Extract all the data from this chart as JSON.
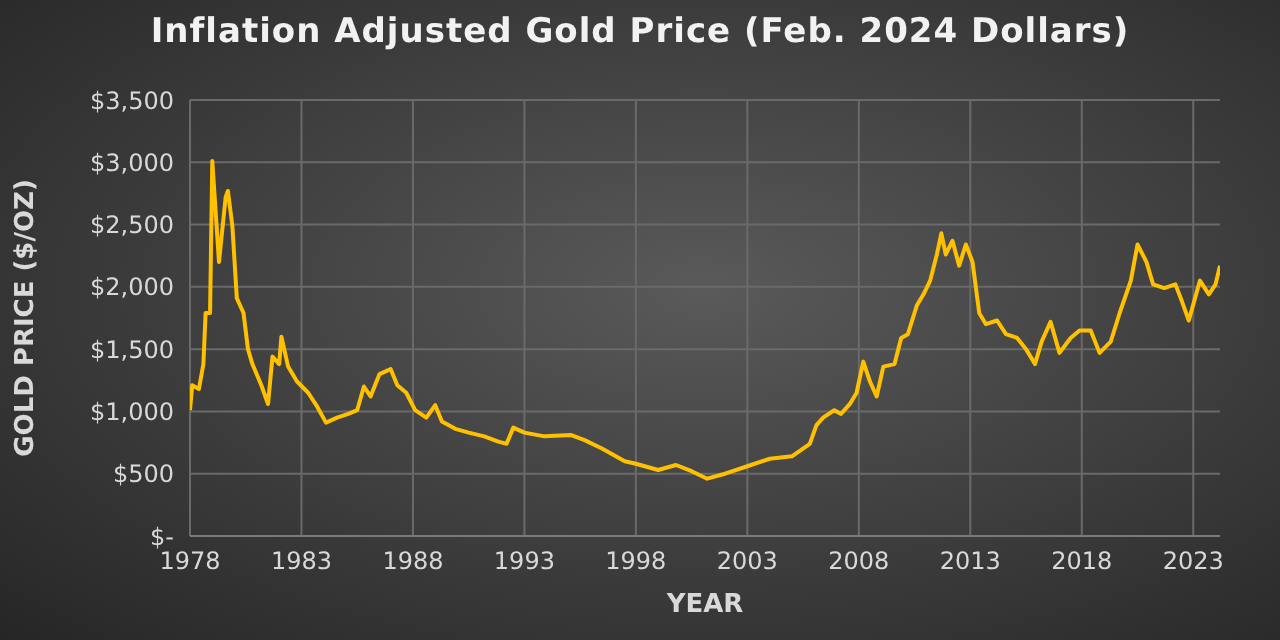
{
  "chart_data": {
    "type": "line",
    "title": "Inflation Adjusted Gold Price (Feb. 2024 Dollars)",
    "xlabel": "YEAR",
    "ylabel": "GOLD PRICE ($/OZ)",
    "grid": true,
    "legend": false,
    "marker": "none",
    "line_style": "solid",
    "x": [
      1978.0,
      1978.1,
      1978.4,
      1978.6,
      1978.7,
      1978.9,
      1979.0,
      1979.3,
      1979.6,
      1979.7,
      1979.9,
      1980.1,
      1980.4,
      1980.6,
      1980.8,
      1981.2,
      1981.5,
      1981.7,
      1982.0,
      1982.1,
      1982.4,
      1982.8,
      1983.3,
      1983.7,
      1984.1,
      1984.6,
      1985.1,
      1985.5,
      1985.8,
      1986.1,
      1986.5,
      1987.0,
      1987.3,
      1987.7,
      1988.1,
      1988.6,
      1989.0,
      1989.3,
      1989.9,
      1990.5,
      1991.2,
      1991.8,
      1992.2,
      1992.5,
      1993.0,
      1993.9,
      1995.1,
      1995.7,
      1996.5,
      1997.5,
      1998.0,
      1999.0,
      1999.8,
      2000.5,
      2001.2,
      2002.0,
      2003.0,
      2004.0,
      2005.0,
      2005.8,
      2006.1,
      2006.4,
      2006.9,
      2007.2,
      2007.6,
      2007.9,
      2008.2,
      2008.5,
      2008.8,
      2009.1,
      2009.6,
      2009.9,
      2010.2,
      2010.6,
      2010.9,
      2011.2,
      2011.5,
      2011.7,
      2011.9,
      2012.2,
      2012.5,
      2012.8,
      2013.1,
      2013.4,
      2013.7,
      2014.2,
      2014.6,
      2015.1,
      2015.5,
      2015.9,
      2016.2,
      2016.6,
      2017.0,
      2017.5,
      2017.9,
      2018.4,
      2018.8,
      2019.3,
      2019.7,
      2020.2,
      2020.5,
      2020.9,
      2021.2,
      2021.7,
      2022.2,
      2022.5,
      2022.8,
      2023.3,
      2023.7,
      2024.0,
      2024.2
    ],
    "series": [
      {
        "color": "#ffc000",
        "values": [
          1010,
          1210,
          1180,
          1380,
          1790,
          1790,
          3010,
          2200,
          2720,
          2770,
          2490,
          1910,
          1790,
          1500,
          1380,
          1210,
          1060,
          1440,
          1380,
          1600,
          1360,
          1240,
          1150,
          1040,
          910,
          950,
          980,
          1010,
          1200,
          1120,
          1300,
          1340,
          1210,
          1150,
          1010,
          950,
          1050,
          920,
          860,
          830,
          800,
          760,
          740,
          870,
          830,
          800,
          810,
          770,
          700,
          600,
          580,
          530,
          570,
          520,
          460,
          500,
          560,
          620,
          640,
          740,
          890,
          950,
          1010,
          980,
          1060,
          1150,
          1400,
          1240,
          1120,
          1360,
          1380,
          1590,
          1620,
          1850,
          1940,
          2050,
          2260,
          2430,
          2260,
          2370,
          2170,
          2340,
          2200,
          1790,
          1700,
          1730,
          1620,
          1590,
          1500,
          1380,
          1560,
          1720,
          1470,
          1590,
          1650,
          1650,
          1470,
          1560,
          1790,
          2050,
          2340,
          2200,
          2020,
          1990,
          2020,
          1880,
          1730,
          2050,
          1940,
          2020,
          2170
        ]
      }
    ],
    "xlim": [
      1978,
      2024.2
    ],
    "xticks": [
      1978,
      1983,
      1988,
      1993,
      1998,
      2003,
      2008,
      2013,
      2018,
      2023
    ],
    "ylim": [
      0,
      3500
    ],
    "yticks": [
      {
        "value": 0,
        "label": "$-"
      },
      {
        "value": 500,
        "label": "$500"
      },
      {
        "value": 1000,
        "label": "$1,000"
      },
      {
        "value": 1500,
        "label": "$1,500"
      },
      {
        "value": 2000,
        "label": "$2,000"
      },
      {
        "value": 2500,
        "label": "$2,500"
      },
      {
        "value": 3000,
        "label": "$3,000"
      },
      {
        "value": 3500,
        "label": "$3,500"
      }
    ]
  }
}
